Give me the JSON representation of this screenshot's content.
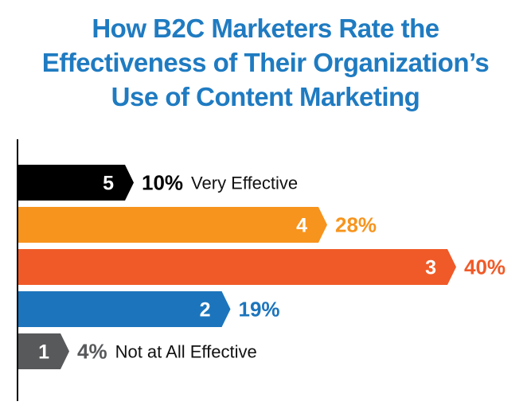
{
  "title_lines": [
    "How B2C Marketers Rate the",
    "Effectiveness of Their Organization’s",
    "Use of Content Marketing"
  ],
  "chart_data": {
    "type": "bar",
    "orientation": "horizontal",
    "title": "How B2C Marketers Rate the Effectiveness of Their Organization’s Use of Content Marketing",
    "xlim": [
      0,
      40
    ],
    "bars": [
      {
        "rating": "5",
        "value": 10,
        "label": "10%",
        "description": "Very Effective",
        "color": "#000000",
        "label_color": "#000000"
      },
      {
        "rating": "4",
        "value": 28,
        "label": "28%",
        "description": "",
        "color": "#f7941d",
        "label_color": "#f7941d"
      },
      {
        "rating": "3",
        "value": 40,
        "label": "40%",
        "description": "",
        "color": "#f05a28",
        "label_color": "#f05a28"
      },
      {
        "rating": "2",
        "value": 19,
        "label": "19%",
        "description": "",
        "color": "#1c75bc",
        "label_color": "#1c75bc"
      },
      {
        "rating": "1",
        "value": 4,
        "label": "4%",
        "description": "Not at All Effective",
        "color": "#58595b",
        "label_color": "#58595b"
      }
    ]
  }
}
